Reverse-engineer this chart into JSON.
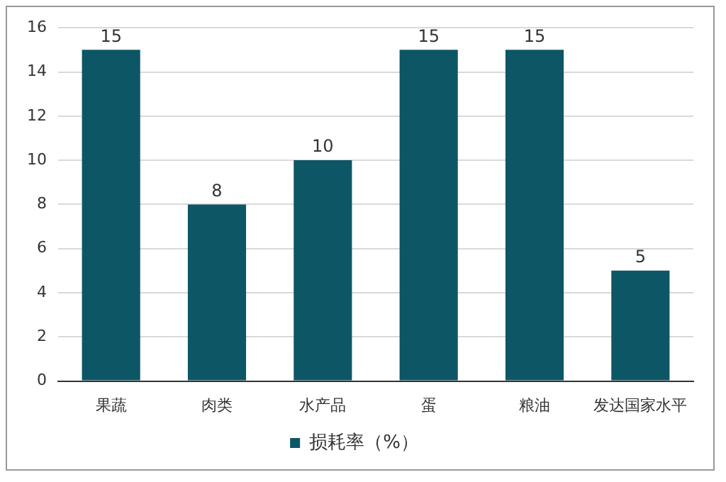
{
  "chart_data": {
    "type": "bar",
    "categories": [
      "果蔬",
      "肉类",
      "水产品",
      "蛋",
      "粮油",
      "发达国家水平"
    ],
    "series": [
      {
        "name": "损耗率（%）",
        "color": "#0d5665",
        "values": [
          15,
          8,
          10,
          15,
          15,
          5
        ]
      }
    ],
    "ylim": [
      0,
      16
    ],
    "yticks": [
      0,
      2,
      4,
      6,
      8,
      10,
      12,
      14,
      16
    ],
    "grid": "y",
    "legend": "bottom",
    "data_labels": true
  }
}
